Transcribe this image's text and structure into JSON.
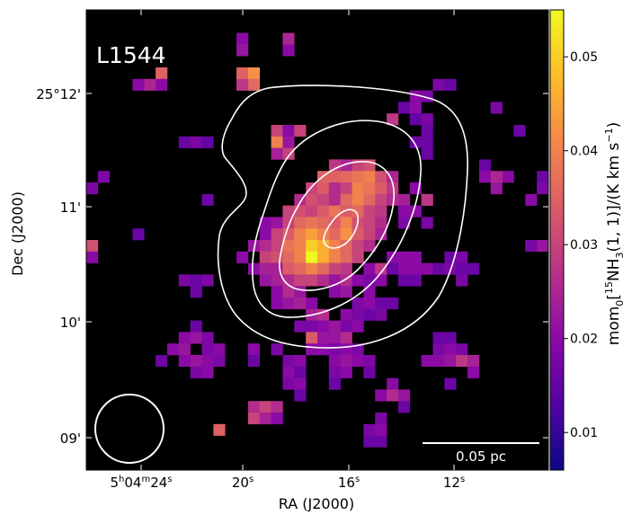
{
  "chart_data": {
    "type": "heatmap",
    "title": "L1544",
    "xlabel": "RA (J2000)",
    "ylabel": "Dec (J2000)",
    "colorbar_label": "mom0[15NH3(1,1)]/(K km s-1)",
    "colorbar_label_parts": {
      "prefix": "mom",
      "sub0": "0",
      "open": "[",
      "sup15": "15",
      "nh": "NH",
      "sub3": "3",
      "trans": "(1, 1)]/(K km s",
      "supm1": "−1",
      "close": ")"
    },
    "colorbar_range": [
      0.006,
      0.055
    ],
    "colorbar_ticks": [
      {
        "value": 0.01,
        "label": "0.01"
      },
      {
        "value": 0.02,
        "label": "0.02"
      },
      {
        "value": 0.03,
        "label": "0.03"
      },
      {
        "value": 0.04,
        "label": "0.04"
      },
      {
        "value": 0.05,
        "label": "0.05"
      }
    ],
    "colormap": "plasma",
    "xticks": [
      {
        "label": "5h04m24s",
        "parts": [
          "5",
          "h",
          "04",
          "m",
          "24",
          "s"
        ]
      },
      {
        "label": "20s",
        "parts": [
          "",
          "",
          "",
          "",
          "20",
          "s"
        ]
      },
      {
        "label": "16s",
        "parts": [
          "",
          "",
          "",
          "",
          "16",
          "s"
        ]
      },
      {
        "label": "12s",
        "parts": [
          "",
          "",
          "",
          "",
          "12",
          "s"
        ]
      }
    ],
    "yticks": [
      "25°12'",
      "11'",
      "10'",
      "09'"
    ],
    "scalebar_label": "0.05 pc",
    "beam": "circle",
    "contours": "white, 4 levels",
    "pixel_grid": "40 x 40",
    "pixels": [
      [
        13,
        2,
        0.02
      ],
      [
        17,
        2,
        0.025
      ],
      [
        13,
        3,
        0.022
      ],
      [
        17,
        3,
        0.02
      ],
      [
        6,
        5,
        0.035
      ],
      [
        13,
        5,
        0.035
      ],
      [
        6,
        6,
        0.02
      ],
      [
        5,
        6,
        0.025
      ],
      [
        4,
        6,
        0.02
      ],
      [
        14,
        5,
        0.042
      ],
      [
        14,
        6,
        0.036
      ],
      [
        13,
        6,
        0.028
      ],
      [
        30,
        6,
        0.018
      ],
      [
        31,
        6,
        0.016
      ],
      [
        28,
        7,
        0.02
      ],
      [
        29,
        7,
        0.018
      ],
      [
        35,
        8,
        0.018
      ],
      [
        27,
        8,
        0.016
      ],
      [
        28,
        8,
        0.02
      ],
      [
        26,
        9,
        0.028
      ],
      [
        28,
        9,
        0.015
      ],
      [
        29,
        9,
        0.018
      ],
      [
        29,
        10,
        0.016
      ],
      [
        37,
        10,
        0.016
      ],
      [
        16,
        10,
        0.03
      ],
      [
        17,
        10,
        0.02
      ],
      [
        18,
        10,
        0.03
      ],
      [
        16,
        11,
        0.04
      ],
      [
        17,
        11,
        0.022
      ],
      [
        9,
        11,
        0.018
      ],
      [
        8,
        11,
        0.016
      ],
      [
        10,
        11,
        0.015
      ],
      [
        28,
        11,
        0.016
      ],
      [
        29,
        11,
        0.016
      ],
      [
        17,
        12,
        0.03
      ],
      [
        16,
        12,
        0.024
      ],
      [
        29,
        12,
        0.016
      ],
      [
        34,
        13,
        0.016
      ],
      [
        23,
        13,
        0.03
      ],
      [
        24,
        13,
        0.032
      ],
      [
        21,
        13,
        0.028
      ],
      [
        22,
        13,
        0.025
      ],
      [
        20,
        14,
        0.035
      ],
      [
        21,
        14,
        0.035
      ],
      [
        22,
        14,
        0.036
      ],
      [
        23,
        14,
        0.038
      ],
      [
        24,
        14,
        0.04
      ],
      [
        25,
        14,
        0.032
      ],
      [
        26,
        14,
        0.025
      ],
      [
        34,
        14,
        0.02
      ],
      [
        1,
        14,
        0.018
      ],
      [
        0,
        15,
        0.018
      ],
      [
        35,
        15,
        0.022
      ],
      [
        36,
        14,
        0.02
      ],
      [
        39,
        14,
        0.016
      ],
      [
        19,
        15,
        0.03
      ],
      [
        20,
        15,
        0.034
      ],
      [
        21,
        15,
        0.026
      ],
      [
        22,
        15,
        0.03
      ],
      [
        23,
        15,
        0.04
      ],
      [
        24,
        15,
        0.038
      ],
      [
        25,
        15,
        0.034
      ],
      [
        26,
        15,
        0.028
      ],
      [
        35,
        14,
        0.025
      ],
      [
        28,
        15,
        0.02
      ],
      [
        39,
        15,
        0.018
      ],
      [
        10,
        16,
        0.016
      ],
      [
        27,
        16,
        0.024
      ],
      [
        29,
        16,
        0.028
      ],
      [
        38,
        16,
        0.02
      ],
      [
        18,
        16,
        0.026
      ],
      [
        19,
        16,
        0.032
      ],
      [
        20,
        16,
        0.03
      ],
      [
        21,
        16,
        0.026
      ],
      [
        22,
        16,
        0.036
      ],
      [
        23,
        16,
        0.04
      ],
      [
        24,
        16,
        0.036
      ],
      [
        25,
        16,
        0.03
      ],
      [
        26,
        16,
        0.026
      ],
      [
        17,
        17,
        0.03
      ],
      [
        18,
        17,
        0.032
      ],
      [
        19,
        17,
        0.03
      ],
      [
        20,
        17,
        0.034
      ],
      [
        21,
        17,
        0.038
      ],
      [
        22,
        17,
        0.034
      ],
      [
        23,
        17,
        0.036
      ],
      [
        24,
        17,
        0.03
      ],
      [
        25,
        17,
        0.028
      ],
      [
        27,
        17,
        0.02
      ],
      [
        28,
        17,
        0.02
      ],
      [
        15,
        18,
        0.02
      ],
      [
        16,
        18,
        0.022
      ],
      [
        17,
        18,
        0.03
      ],
      [
        18,
        18,
        0.036
      ],
      [
        19,
        18,
        0.038
      ],
      [
        20,
        18,
        0.036
      ],
      [
        21,
        18,
        0.034
      ],
      [
        22,
        18,
        0.04
      ],
      [
        23,
        18,
        0.032
      ],
      [
        24,
        18,
        0.03
      ],
      [
        25,
        18,
        0.026
      ],
      [
        27,
        18,
        0.018
      ],
      [
        29,
        18,
        0.018
      ],
      [
        15,
        19,
        0.02
      ],
      [
        16,
        19,
        0.03
      ],
      [
        17,
        19,
        0.034
      ],
      [
        18,
        19,
        0.04
      ],
      [
        19,
        19,
        0.044
      ],
      [
        20,
        19,
        0.04
      ],
      [
        21,
        19,
        0.036
      ],
      [
        22,
        19,
        0.042
      ],
      [
        23,
        19,
        0.034
      ],
      [
        24,
        19,
        0.03
      ],
      [
        25,
        19,
        0.024
      ],
      [
        4,
        19,
        0.016
      ],
      [
        0,
        20,
        0.032
      ],
      [
        39,
        20,
        0.022
      ],
      [
        38,
        20,
        0.018
      ],
      [
        14,
        20,
        0.022
      ],
      [
        15,
        20,
        0.026
      ],
      [
        16,
        20,
        0.03
      ],
      [
        17,
        20,
        0.038
      ],
      [
        18,
        20,
        0.04
      ],
      [
        19,
        20,
        0.05
      ],
      [
        20,
        20,
        0.046
      ],
      [
        21,
        20,
        0.04
      ],
      [
        22,
        20,
        0.036
      ],
      [
        23,
        20,
        0.03
      ],
      [
        24,
        20,
        0.026
      ],
      [
        0,
        21,
        0.02
      ],
      [
        28,
        21,
        0.02
      ],
      [
        13,
        21,
        0.02
      ],
      [
        15,
        21,
        0.03
      ],
      [
        16,
        21,
        0.032
      ],
      [
        17,
        21,
        0.036
      ],
      [
        18,
        21,
        0.04
      ],
      [
        19,
        21,
        0.055
      ],
      [
        20,
        21,
        0.046
      ],
      [
        21,
        21,
        0.04
      ],
      [
        22,
        21,
        0.036
      ],
      [
        23,
        21,
        0.03
      ],
      [
        26,
        21,
        0.02
      ],
      [
        27,
        21,
        0.02
      ],
      [
        28,
        22,
        0.02
      ],
      [
        31,
        21,
        0.016
      ],
      [
        32,
        21,
        0.018
      ],
      [
        31,
        22,
        0.018
      ],
      [
        29,
        22,
        0.02
      ],
      [
        32,
        22,
        0.016
      ],
      [
        14,
        22,
        0.02
      ],
      [
        15,
        22,
        0.024
      ],
      [
        16,
        22,
        0.024
      ],
      [
        17,
        22,
        0.034
      ],
      [
        18,
        22,
        0.036
      ],
      [
        19,
        22,
        0.04
      ],
      [
        20,
        22,
        0.036
      ],
      [
        21,
        22,
        0.03
      ],
      [
        22,
        22,
        0.028
      ],
      [
        24,
        22,
        0.02
      ],
      [
        25,
        22,
        0.028
      ],
      [
        27,
        22,
        0.02
      ],
      [
        30,
        22,
        0.016
      ],
      [
        33,
        22,
        0.016
      ],
      [
        26,
        22,
        0.016
      ],
      [
        8,
        23,
        0.018
      ],
      [
        9,
        23,
        0.016
      ],
      [
        10,
        23,
        0.018
      ],
      [
        15,
        23,
        0.022
      ],
      [
        16,
        23,
        0.024
      ],
      [
        17,
        23,
        0.026
      ],
      [
        18,
        23,
        0.03
      ],
      [
        19,
        23,
        0.03
      ],
      [
        20,
        23,
        0.026
      ],
      [
        21,
        23,
        0.022
      ],
      [
        22,
        23,
        0.026
      ],
      [
        23,
        23,
        0.02
      ],
      [
        24,
        23,
        0.018
      ],
      [
        25,
        23,
        0.02
      ],
      [
        27,
        23,
        0.016
      ],
      [
        28,
        23,
        0.016
      ],
      [
        32,
        23,
        0.018
      ],
      [
        16,
        24,
        0.02
      ],
      [
        17,
        24,
        0.026
      ],
      [
        18,
        24,
        0.022
      ],
      [
        21,
        24,
        0.02
      ],
      [
        22,
        24,
        0.022
      ],
      [
        24,
        24,
        0.02
      ],
      [
        9,
        24,
        0.016
      ],
      [
        16,
        25,
        0.02
      ],
      [
        17,
        25,
        0.022
      ],
      [
        18,
        25,
        0.024
      ],
      [
        19,
        25,
        0.02
      ],
      [
        23,
        25,
        0.018
      ],
      [
        24,
        25,
        0.02
      ],
      [
        25,
        25,
        0.016
      ],
      [
        26,
        25,
        0.016
      ],
      [
        19,
        26,
        0.024
      ],
      [
        20,
        26,
        0.026
      ],
      [
        23,
        26,
        0.018
      ],
      [
        24,
        26,
        0.016
      ],
      [
        25,
        26,
        0.018
      ],
      [
        22,
        26,
        0.02
      ],
      [
        20,
        27,
        0.02
      ],
      [
        21,
        27,
        0.022
      ],
      [
        22,
        27,
        0.018
      ],
      [
        23,
        27,
        0.02
      ],
      [
        19,
        27,
        0.018
      ],
      [
        18,
        27,
        0.018
      ],
      [
        9,
        27,
        0.016
      ],
      [
        8,
        28,
        0.02
      ],
      [
        9,
        28,
        0.022
      ],
      [
        10,
        28,
        0.018
      ],
      [
        19,
        28,
        0.034
      ],
      [
        20,
        28,
        0.022
      ],
      [
        21,
        28,
        0.022
      ],
      [
        22,
        28,
        0.026
      ],
      [
        30,
        28,
        0.016
      ],
      [
        31,
        28,
        0.016
      ],
      [
        7,
        29,
        0.02
      ],
      [
        8,
        29,
        0.022
      ],
      [
        10,
        29,
        0.018
      ],
      [
        11,
        29,
        0.02
      ],
      [
        14,
        29,
        0.02
      ],
      [
        16,
        29,
        0.018
      ],
      [
        19,
        29,
        0.02
      ],
      [
        20,
        29,
        0.02
      ],
      [
        21,
        29,
        0.018
      ],
      [
        22,
        29,
        0.02
      ],
      [
        23,
        29,
        0.018
      ],
      [
        30,
        29,
        0.018
      ],
      [
        31,
        29,
        0.02
      ],
      [
        32,
        29,
        0.018
      ],
      [
        6,
        30,
        0.016
      ],
      [
        8,
        30,
        0.02
      ],
      [
        9,
        30,
        0.022
      ],
      [
        10,
        30,
        0.02
      ],
      [
        11,
        30,
        0.018
      ],
      [
        14,
        30,
        0.016
      ],
      [
        17,
        30,
        0.018
      ],
      [
        18,
        30,
        0.02
      ],
      [
        21,
        30,
        0.02
      ],
      [
        22,
        30,
        0.022
      ],
      [
        23,
        30,
        0.02
      ],
      [
        24,
        30,
        0.018
      ],
      [
        29,
        30,
        0.02
      ],
      [
        30,
        30,
        0.02
      ],
      [
        31,
        30,
        0.022
      ],
      [
        32,
        30,
        0.028
      ],
      [
        33,
        30,
        0.024
      ],
      [
        9,
        31,
        0.018
      ],
      [
        10,
        31,
        0.02
      ],
      [
        17,
        31,
        0.02
      ],
      [
        18,
        31,
        0.016
      ],
      [
        21,
        31,
        0.018
      ],
      [
        22,
        31,
        0.02
      ],
      [
        24,
        31,
        0.016
      ],
      [
        33,
        31,
        0.02
      ],
      [
        17,
        32,
        0.018
      ],
      [
        18,
        32,
        0.02
      ],
      [
        21,
        32,
        0.016
      ],
      [
        26,
        32,
        0.02
      ],
      [
        31,
        32,
        0.016
      ],
      [
        18,
        33,
        0.016
      ],
      [
        25,
        33,
        0.02
      ],
      [
        26,
        33,
        0.026
      ],
      [
        27,
        33,
        0.022
      ],
      [
        14,
        34,
        0.026
      ],
      [
        15,
        34,
        0.03
      ],
      [
        16,
        34,
        0.026
      ],
      [
        27,
        34,
        0.016
      ],
      [
        14,
        35,
        0.03
      ],
      [
        15,
        35,
        0.024
      ],
      [
        16,
        35,
        0.02
      ],
      [
        25,
        35,
        0.018
      ],
      [
        11,
        36,
        0.035
      ],
      [
        24,
        36,
        0.018
      ],
      [
        25,
        36,
        0.02
      ],
      [
        24,
        37,
        0.016
      ],
      [
        25,
        37,
        0.016
      ]
    ]
  }
}
